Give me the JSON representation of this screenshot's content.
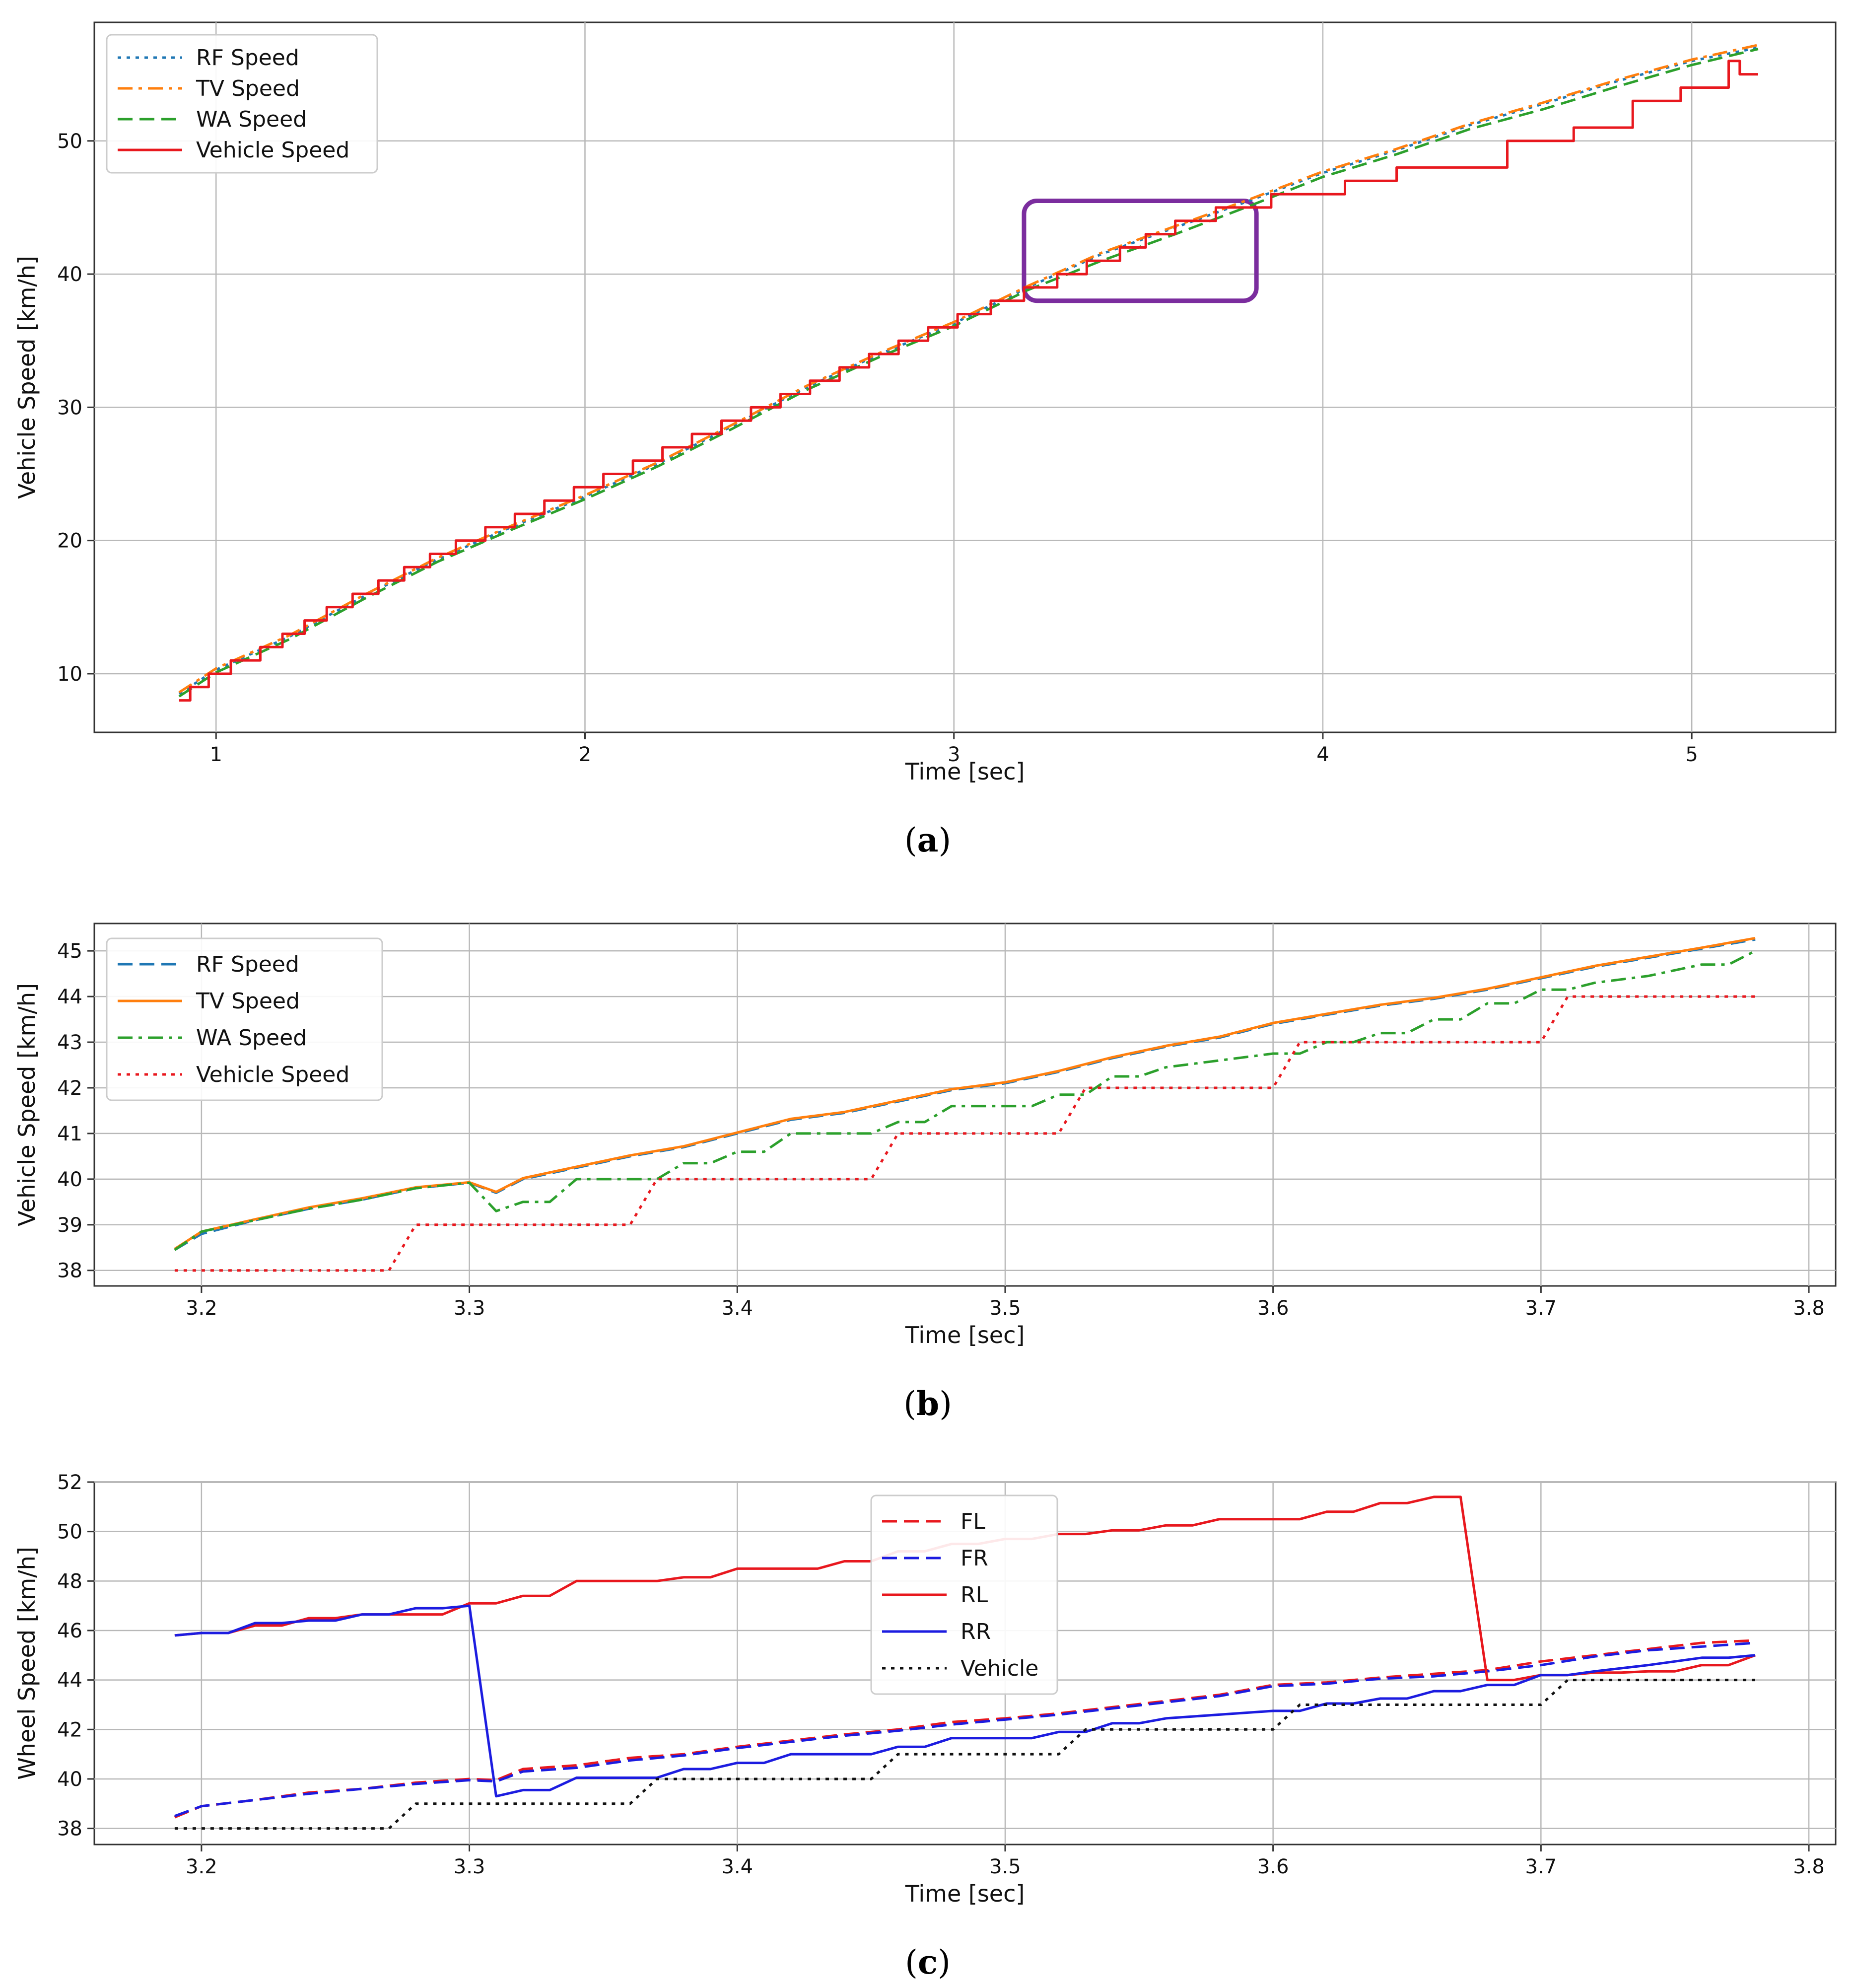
{
  "chart_data": [
    {
      "type": "line",
      "caption": "(a)",
      "caption_letter": "a",
      "xlabel": "Time [sec]",
      "ylabel": "Vehicle Speed [km/h]",
      "xlim": [
        0.67,
        5.39
      ],
      "ylim": [
        5.6,
        58.9
      ],
      "xticks": [
        1,
        2,
        3,
        4,
        5
      ],
      "yticks": [
        10,
        20,
        30,
        40,
        50
      ],
      "grid": true,
      "legend_position": "top-left",
      "series": [
        {
          "name": "RF Speed",
          "color": "#1f77b4",
          "style": "dotted",
          "x": [
            0.9,
            1.0,
            1.2,
            1.4,
            1.6,
            1.8,
            2.0,
            2.2,
            2.4,
            2.6,
            2.8,
            3.0,
            3.2,
            3.4,
            3.6,
            3.8,
            4.0,
            4.2,
            4.4,
            4.6,
            4.8,
            5.0,
            5.18
          ],
          "y": [
            8.5,
            10.3,
            12.8,
            15.8,
            18.6,
            21.0,
            23.3,
            25.8,
            28.6,
            31.5,
            34.0,
            36.3,
            39.0,
            41.5,
            43.5,
            45.5,
            47.6,
            49.3,
            51.2,
            52.8,
            54.5,
            56.0,
            57.0
          ]
        },
        {
          "name": "TV Speed",
          "color": "#ff7f0e",
          "style": "dashdot",
          "x": [
            0.9,
            1.0,
            1.2,
            1.4,
            1.6,
            1.8,
            2.0,
            2.2,
            2.4,
            2.6,
            2.8,
            3.0,
            3.2,
            3.4,
            3.6,
            3.8,
            4.0,
            4.2,
            4.4,
            4.6,
            4.8,
            5.0,
            5.18
          ],
          "y": [
            8.6,
            10.4,
            12.9,
            15.9,
            18.7,
            21.1,
            23.4,
            25.9,
            28.7,
            31.6,
            34.1,
            36.4,
            39.1,
            41.6,
            43.6,
            45.6,
            47.7,
            49.4,
            51.3,
            52.9,
            54.6,
            56.1,
            57.2
          ]
        },
        {
          "name": "WA Speed",
          "color": "#2ca02c",
          "style": "dashed",
          "x": [
            0.9,
            1.0,
            1.2,
            1.4,
            1.6,
            1.8,
            2.0,
            2.2,
            2.4,
            2.6,
            2.8,
            3.0,
            3.2,
            3.4,
            3.6,
            3.8,
            4.0,
            4.2,
            4.4,
            4.6,
            4.8,
            5.0,
            5.18
          ],
          "y": [
            8.3,
            10.1,
            12.6,
            15.6,
            18.4,
            20.8,
            23.1,
            25.6,
            28.4,
            31.3,
            33.8,
            36.1,
            38.8,
            41.0,
            43.0,
            45.1,
            47.3,
            49.0,
            50.9,
            52.4,
            54.1,
            55.7,
            56.9
          ]
        },
        {
          "name": "Vehicle Speed",
          "color": "#e8181e",
          "style": "solid",
          "step": true,
          "x": [
            0.9,
            0.93,
            0.98,
            1.04,
            1.12,
            1.18,
            1.24,
            1.3,
            1.37,
            1.44,
            1.51,
            1.58,
            1.65,
            1.73,
            1.81,
            1.89,
            1.97,
            2.05,
            2.13,
            2.21,
            2.29,
            2.37,
            2.45,
            2.53,
            2.61,
            2.69,
            2.77,
            2.85,
            2.93,
            3.01,
            3.1,
            3.19,
            3.28,
            3.36,
            3.45,
            3.52,
            3.6,
            3.71,
            3.86,
            4.06,
            4.2,
            4.5,
            4.68,
            4.84,
            4.97,
            5.1,
            5.13,
            5.18
          ],
          "y": [
            8,
            9,
            10,
            11,
            12,
            13,
            14,
            15,
            16,
            17,
            18,
            19,
            20,
            21,
            22,
            23,
            24,
            25,
            26,
            27,
            28,
            29,
            30,
            31,
            32,
            33,
            34,
            35,
            36,
            37,
            38,
            39,
            40,
            41,
            42,
            43,
            44,
            45,
            46,
            47,
            48,
            50,
            51,
            53,
            54,
            56,
            55,
            55
          ]
        }
      ],
      "annotation": {
        "type": "rectangle",
        "color": "#7b2d9e",
        "x_range": [
          3.19,
          3.82
        ],
        "y_range": [
          38.0,
          45.5
        ]
      }
    },
    {
      "type": "line",
      "caption": "(b)",
      "caption_letter": "b",
      "xlabel": "Time [sec]",
      "ylabel": "Vehicle Speed [km/h]",
      "xlim": [
        3.16,
        3.81
      ],
      "ylim": [
        37.66,
        45.6
      ],
      "xticks": [
        3.2,
        3.3,
        3.4,
        3.5,
        3.6,
        3.7,
        3.8
      ],
      "xtick_labels": [
        "3.2",
        "3.3",
        "3.4",
        "3.5",
        "3.6",
        "3.7",
        "3.8"
      ],
      "yticks": [
        38,
        39,
        40,
        41,
        42,
        43,
        44,
        45
      ],
      "grid": true,
      "legend_position": "top-left",
      "series": [
        {
          "name": "RF Speed",
          "color": "#1f77b4",
          "style": "dashed",
          "x": [
            3.19,
            3.2,
            3.22,
            3.24,
            3.26,
            3.28,
            3.3,
            3.31,
            3.32,
            3.34,
            3.36,
            3.38,
            3.4,
            3.42,
            3.44,
            3.46,
            3.48,
            3.5,
            3.52,
            3.54,
            3.56,
            3.58,
            3.6,
            3.62,
            3.64,
            3.66,
            3.68,
            3.7,
            3.72,
            3.74,
            3.76,
            3.78
          ],
          "y": [
            38.45,
            38.8,
            39.1,
            39.35,
            39.55,
            39.8,
            39.92,
            39.7,
            40.0,
            40.25,
            40.5,
            40.7,
            41.0,
            41.3,
            41.45,
            41.7,
            41.95,
            42.1,
            42.35,
            42.65,
            42.9,
            43.1,
            43.4,
            43.6,
            43.8,
            43.95,
            44.15,
            44.4,
            44.65,
            44.85,
            45.05,
            45.25
          ]
        },
        {
          "name": "TV Speed",
          "color": "#ff7f0e",
          "style": "solid",
          "x": [
            3.19,
            3.2,
            3.22,
            3.24,
            3.26,
            3.28,
            3.3,
            3.31,
            3.32,
            3.34,
            3.36,
            3.38,
            3.4,
            3.42,
            3.44,
            3.46,
            3.48,
            3.5,
            3.52,
            3.54,
            3.56,
            3.58,
            3.6,
            3.62,
            3.64,
            3.66,
            3.68,
            3.7,
            3.72,
            3.74,
            3.76,
            3.78
          ],
          "y": [
            38.47,
            38.85,
            39.12,
            39.38,
            39.58,
            39.82,
            39.93,
            39.72,
            40.02,
            40.27,
            40.52,
            40.72,
            41.02,
            41.32,
            41.47,
            41.72,
            41.97,
            42.12,
            42.37,
            42.67,
            42.92,
            43.12,
            43.42,
            43.62,
            43.82,
            43.97,
            44.17,
            44.42,
            44.67,
            44.87,
            45.07,
            45.28
          ]
        },
        {
          "name": "WA Speed",
          "color": "#2ca02c",
          "style": "dashdot",
          "x": [
            3.19,
            3.2,
            3.22,
            3.24,
            3.26,
            3.28,
            3.3,
            3.31,
            3.32,
            3.33,
            3.34,
            3.36,
            3.37,
            3.38,
            3.39,
            3.4,
            3.41,
            3.42,
            3.45,
            3.46,
            3.47,
            3.48,
            3.51,
            3.52,
            3.53,
            3.54,
            3.55,
            3.56,
            3.58,
            3.6,
            3.61,
            3.62,
            3.63,
            3.64,
            3.65,
            3.66,
            3.67,
            3.68,
            3.69,
            3.7,
            3.71,
            3.72,
            3.74,
            3.76,
            3.77,
            3.78
          ],
          "y": [
            38.45,
            38.85,
            39.1,
            39.35,
            39.55,
            39.8,
            39.92,
            39.3,
            39.5,
            39.5,
            40.0,
            40.0,
            40.0,
            40.35,
            40.35,
            40.6,
            40.6,
            41.0,
            41.0,
            41.25,
            41.25,
            41.6,
            41.6,
            41.85,
            41.85,
            42.25,
            42.25,
            42.45,
            42.6,
            42.75,
            42.75,
            43.0,
            43.0,
            43.2,
            43.2,
            43.5,
            43.5,
            43.85,
            43.85,
            44.15,
            44.15,
            44.3,
            44.45,
            44.7,
            44.7,
            45.0
          ]
        },
        {
          "name": "Vehicle Speed",
          "color": "#e8181e",
          "style": "dotted",
          "x": [
            3.19,
            3.27,
            3.28,
            3.36,
            3.37,
            3.45,
            3.46,
            3.52,
            3.53,
            3.6,
            3.61,
            3.7,
            3.71,
            3.78
          ],
          "y": [
            38,
            38,
            39,
            39,
            40,
            40,
            41,
            41,
            42,
            42,
            43,
            43,
            44,
            44
          ]
        }
      ]
    },
    {
      "type": "line",
      "caption": "(c)",
      "caption_letter": "c",
      "xlabel": "Time [sec]",
      "ylabel": "Wheel Speed [km/h]",
      "xlim": [
        3.16,
        3.81
      ],
      "ylim": [
        37.35,
        52.0
      ],
      "xticks": [
        3.2,
        3.3,
        3.4,
        3.5,
        3.6,
        3.7,
        3.8
      ],
      "xtick_labels": [
        "3.2",
        "3.3",
        "3.4",
        "3.5",
        "3.6",
        "3.7",
        "3.8"
      ],
      "yticks": [
        38,
        40,
        42,
        44,
        46,
        48,
        50,
        52
      ],
      "grid": true,
      "legend_position": "top-center",
      "series": [
        {
          "name": "FL",
          "color": "#e8181e",
          "style": "dashed",
          "x": [
            3.19,
            3.2,
            3.22,
            3.24,
            3.26,
            3.28,
            3.3,
            3.31,
            3.32,
            3.34,
            3.36,
            3.38,
            3.4,
            3.42,
            3.44,
            3.46,
            3.48,
            3.5,
            3.52,
            3.54,
            3.56,
            3.58,
            3.6,
            3.62,
            3.64,
            3.66,
            3.68,
            3.7,
            3.72,
            3.74,
            3.76,
            3.78
          ],
          "y": [
            38.45,
            38.9,
            39.15,
            39.45,
            39.6,
            39.85,
            40.0,
            39.95,
            40.4,
            40.55,
            40.85,
            41.0,
            41.3,
            41.55,
            41.8,
            42.0,
            42.3,
            42.45,
            42.65,
            42.9,
            43.15,
            43.4,
            43.8,
            43.9,
            44.1,
            44.25,
            44.4,
            44.75,
            45.0,
            45.25,
            45.5,
            45.6
          ]
        },
        {
          "name": "FR",
          "color": "#1c1ce0",
          "style": "dashed",
          "x": [
            3.19,
            3.2,
            3.22,
            3.24,
            3.26,
            3.28,
            3.3,
            3.31,
            3.32,
            3.34,
            3.36,
            3.38,
            3.4,
            3.42,
            3.44,
            3.46,
            3.48,
            3.5,
            3.52,
            3.54,
            3.56,
            3.58,
            3.6,
            3.62,
            3.64,
            3.66,
            3.68,
            3.7,
            3.72,
            3.74,
            3.76,
            3.78
          ],
          "y": [
            38.5,
            38.9,
            39.15,
            39.4,
            39.6,
            39.8,
            39.95,
            39.9,
            40.3,
            40.45,
            40.75,
            40.95,
            41.25,
            41.5,
            41.75,
            41.95,
            42.2,
            42.4,
            42.6,
            42.85,
            43.1,
            43.35,
            43.75,
            43.85,
            44.05,
            44.15,
            44.35,
            44.6,
            44.95,
            45.2,
            45.35,
            45.5
          ]
        },
        {
          "name": "RL",
          "color": "#e8181e",
          "style": "solid",
          "x": [
            3.19,
            3.2,
            3.21,
            3.22,
            3.23,
            3.24,
            3.25,
            3.26,
            3.27,
            3.28,
            3.29,
            3.3,
            3.31,
            3.32,
            3.33,
            3.34,
            3.36,
            3.37,
            3.38,
            3.39,
            3.4,
            3.41,
            3.42,
            3.43,
            3.44,
            3.45,
            3.46,
            3.47,
            3.48,
            3.49,
            3.5,
            3.51,
            3.52,
            3.53,
            3.54,
            3.55,
            3.56,
            3.57,
            3.58,
            3.59,
            3.6,
            3.61,
            3.62,
            3.63,
            3.64,
            3.65,
            3.66,
            3.67,
            3.68,
            3.69,
            3.7,
            3.71,
            3.72,
            3.73,
            3.74,
            3.75,
            3.76,
            3.77,
            3.78
          ],
          "y": [
            45.8,
            45.9,
            45.9,
            46.2,
            46.2,
            46.5,
            46.5,
            46.65,
            46.65,
            46.65,
            46.65,
            47.1,
            47.1,
            47.4,
            47.4,
            48.0,
            48.0,
            48.0,
            48.15,
            48.15,
            48.5,
            48.5,
            48.5,
            48.5,
            48.8,
            48.8,
            49.2,
            49.2,
            49.5,
            49.5,
            49.7,
            49.7,
            49.9,
            49.9,
            50.05,
            50.05,
            50.25,
            50.25,
            50.5,
            50.5,
            50.5,
            50.5,
            50.8,
            50.8,
            51.15,
            51.15,
            51.4,
            51.4,
            44.0,
            44.0,
            44.2,
            44.2,
            44.3,
            44.3,
            44.35,
            44.35,
            44.6,
            44.6,
            45.0
          ]
        },
        {
          "name": "RR",
          "color": "#1c1ce0",
          "style": "solid",
          "x": [
            3.19,
            3.2,
            3.21,
            3.22,
            3.23,
            3.24,
            3.25,
            3.26,
            3.27,
            3.28,
            3.29,
            3.3,
            3.31,
            3.32,
            3.33,
            3.34,
            3.36,
            3.37,
            3.38,
            3.39,
            3.4,
            3.41,
            3.42,
            3.45,
            3.46,
            3.47,
            3.48,
            3.51,
            3.52,
            3.53,
            3.54,
            3.55,
            3.56,
            3.58,
            3.6,
            3.61,
            3.62,
            3.63,
            3.64,
            3.65,
            3.66,
            3.67,
            3.68,
            3.69,
            3.7,
            3.71,
            3.72,
            3.74,
            3.76,
            3.77,
            3.78
          ],
          "y": [
            45.8,
            45.9,
            45.9,
            46.3,
            46.3,
            46.4,
            46.4,
            46.65,
            46.65,
            46.9,
            46.9,
            47.0,
            39.3,
            39.55,
            39.55,
            40.05,
            40.05,
            40.05,
            40.4,
            40.4,
            40.65,
            40.65,
            41.0,
            41.0,
            41.3,
            41.3,
            41.65,
            41.65,
            41.9,
            41.9,
            42.25,
            42.25,
            42.45,
            42.6,
            42.75,
            42.75,
            43.05,
            43.05,
            43.25,
            43.25,
            43.55,
            43.55,
            43.8,
            43.8,
            44.2,
            44.2,
            44.35,
            44.6,
            44.9,
            44.9,
            45.0
          ]
        },
        {
          "name": "Vehicle",
          "color": "#111111",
          "style": "dotted",
          "x": [
            3.19,
            3.27,
            3.28,
            3.36,
            3.37,
            3.45,
            3.46,
            3.52,
            3.53,
            3.6,
            3.61,
            3.7,
            3.71,
            3.78
          ],
          "y": [
            38,
            38,
            39,
            39,
            40,
            40,
            41,
            41,
            42,
            42,
            43,
            43,
            44,
            44
          ]
        }
      ]
    }
  ]
}
